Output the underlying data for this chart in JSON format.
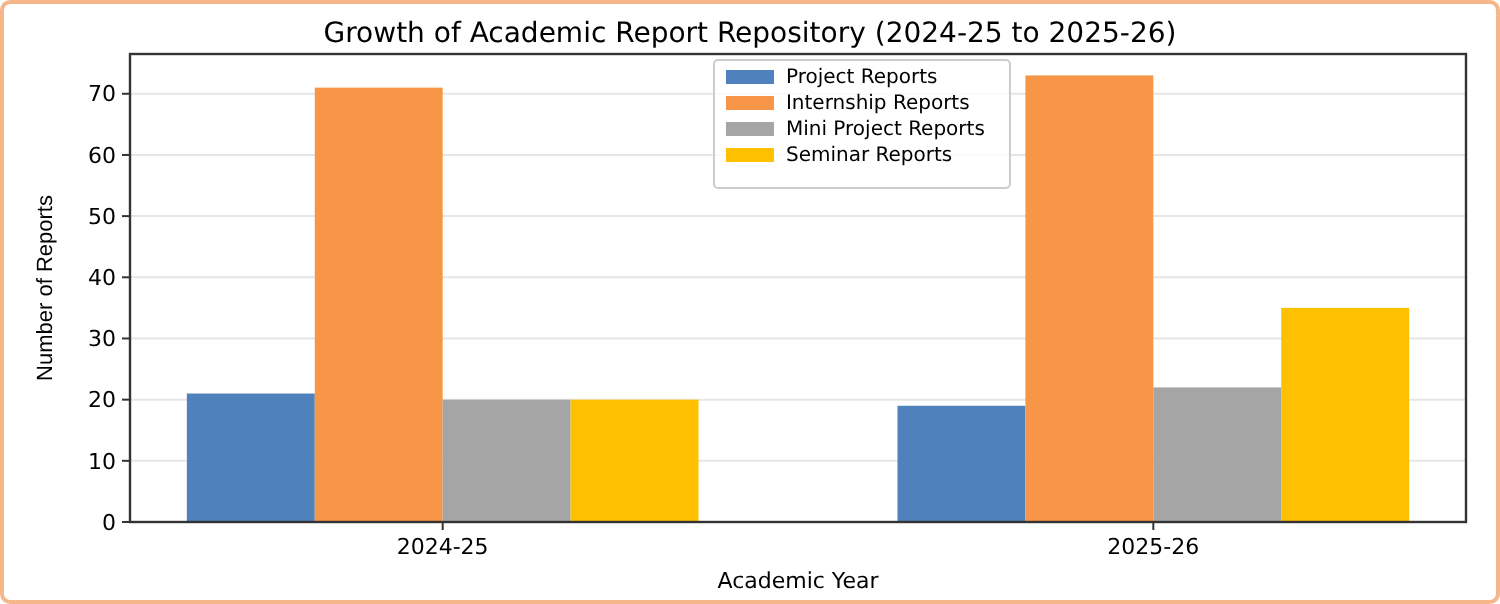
{
  "chart_data": {
    "type": "bar",
    "title": "Growth of Academic Report Repository (2024-25 to 2025-26)",
    "xlabel": "Academic Year",
    "ylabel": "Number of Reports",
    "categories": [
      "2024-25",
      "2025-26"
    ],
    "series": [
      {
        "name": "Project Reports",
        "color": "#4f81bd",
        "values": [
          21,
          19
        ]
      },
      {
        "name": "Internship Reports",
        "color": "#f79646",
        "values": [
          71,
          73
        ]
      },
      {
        "name": "Mini Project Reports",
        "color": "#a5a5a5",
        "values": [
          20,
          22
        ]
      },
      {
        "name": "Seminar Reports",
        "color": "#ffc000",
        "values": [
          20,
          35
        ]
      }
    ],
    "ylim": [
      0,
      76.5
    ],
    "yticks": [
      0,
      10,
      20,
      30,
      40,
      50,
      60,
      70
    ],
    "grid": "y",
    "legend": "top"
  }
}
